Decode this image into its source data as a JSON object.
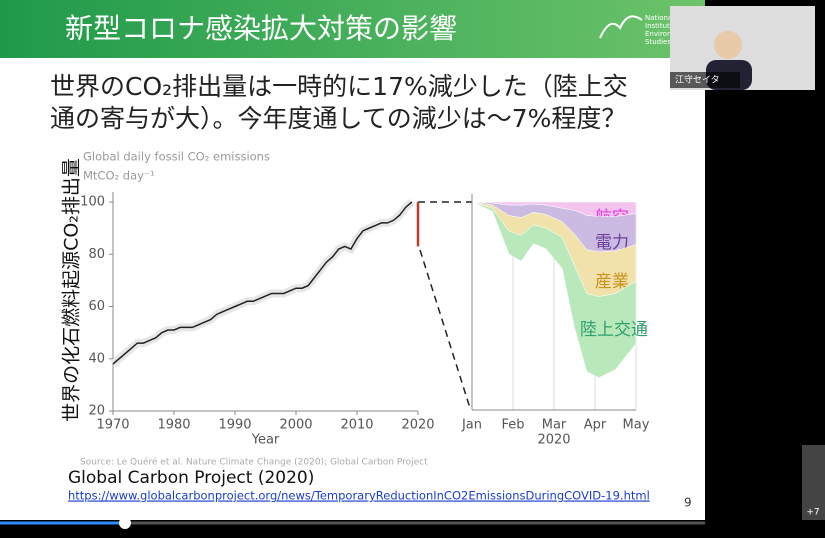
{
  "slide": {
    "title": "新型コロナ感染拡大対策の影響",
    "logo_text": [
      "National",
      "Institute",
      "Environ",
      "Studies."
    ]
  },
  "headline": [
    "世界のCO₂排出量は一時的に17%減少した（陸上交",
    "通の寄与が大）。今年度通しての減少は～7%程度？"
  ],
  "y_axis_label": "世界の化石燃料起源CO₂排出量",
  "chart_data": [
    {
      "type": "line",
      "title": "Global daily fossil CO₂ emissions",
      "unit": "MtCO₂ day⁻¹",
      "xlabel": "Year",
      "x": [
        1970,
        1971,
        1972,
        1973,
        1974,
        1975,
        1976,
        1977,
        1978,
        1979,
        1980,
        1981,
        1982,
        1983,
        1984,
        1985,
        1986,
        1987,
        1988,
        1989,
        1990,
        1991,
        1992,
        1993,
        1994,
        1995,
        1996,
        1997,
        1998,
        1999,
        2000,
        2001,
        2002,
        2003,
        2004,
        2005,
        2006,
        2007,
        2008,
        2009,
        2010,
        2011,
        2012,
        2013,
        2014,
        2015,
        2016,
        2017,
        2018,
        2019
      ],
      "values": [
        38,
        40,
        42,
        44,
        46,
        46,
        47,
        48,
        50,
        51,
        51,
        52,
        52,
        52,
        53,
        54,
        55,
        57,
        58,
        59,
        60,
        61,
        62,
        62,
        63,
        64,
        65,
        65,
        65,
        66,
        67,
        67,
        68,
        71,
        74,
        77,
        79,
        82,
        83,
        82,
        86,
        89,
        90,
        91,
        92,
        92,
        93,
        95,
        98,
        100
      ],
      "color": "#222222",
      "drop": {
        "x": 2020,
        "values": [
          100,
          83
        ],
        "color": "#c0392b"
      },
      "xlim": [
        1970,
        2020
      ],
      "ylim": [
        20,
        100
      ],
      "xticks": [
        1970,
        1980,
        1990,
        2000,
        2010,
        2020
      ],
      "yticks": [
        20,
        40,
        60,
        80,
        100
      ]
    },
    {
      "type": "stacked_area",
      "xlabel": "2020",
      "x": [
        0,
        0.5,
        0.9,
        1.2,
        1.5,
        1.8,
        2.2,
        2.5,
        2.8,
        3.1,
        3.5,
        4.0
      ],
      "xlim": [
        0,
        4
      ],
      "ylim": [
        -20,
        0
      ],
      "xticks": [
        {
          "value": 0,
          "label": "Jan"
        },
        {
          "value": 1,
          "label": "Feb"
        },
        {
          "value": 2,
          "label": "Mar"
        },
        {
          "value": 3,
          "label": "Apr"
        },
        {
          "value": 4,
          "label": "May"
        }
      ],
      "series": [
        {
          "name": "航空",
          "color": "#f4c4ee",
          "label_color": "#e03ce0",
          "values": [
            0,
            -0.1,
            -0.3,
            -0.3,
            -0.2,
            -0.3,
            -0.6,
            -0.8,
            -1.3,
            -1.4,
            -1.4,
            -1.1
          ]
        },
        {
          "name": "電力",
          "color": "#cbbbe2",
          "label_color": "#6a3d9a",
          "values": [
            0,
            -0.2,
            -1,
            -1.2,
            -0.8,
            -0.9,
            -1.3,
            -2.3,
            -3.3,
            -3.4,
            -3.3,
            -3
          ]
        },
        {
          "name": "産業",
          "color": "#f1e2ab",
          "label_color": "#c8921e",
          "values": [
            0,
            -0.3,
            -1.5,
            -1.7,
            -1.2,
            -1.3,
            -1.5,
            -3,
            -4.2,
            -4.3,
            -4.1,
            -3.5
          ]
        },
        {
          "name": "陸上交通",
          "color": "#b9e9bb",
          "label_color": "#2e9e6e",
          "values": [
            0,
            -0.3,
            -2.2,
            -2.5,
            -1.8,
            -2,
            -3,
            -6,
            -7.5,
            -7.8,
            -7.3,
            -6
          ]
        }
      ]
    }
  ],
  "source": "Source: Le Quéré et al. Nature Climate Change (2020); Global Carbon Project",
  "citation": "Global Carbon Project (2020)",
  "url": "https://www.globalcarbonproject.org/news/TemporaryReductionInCO2EmissionsDuringCOVID-19.html",
  "page_number": "9",
  "participant": "江守セイタ",
  "participant_count": "+7"
}
